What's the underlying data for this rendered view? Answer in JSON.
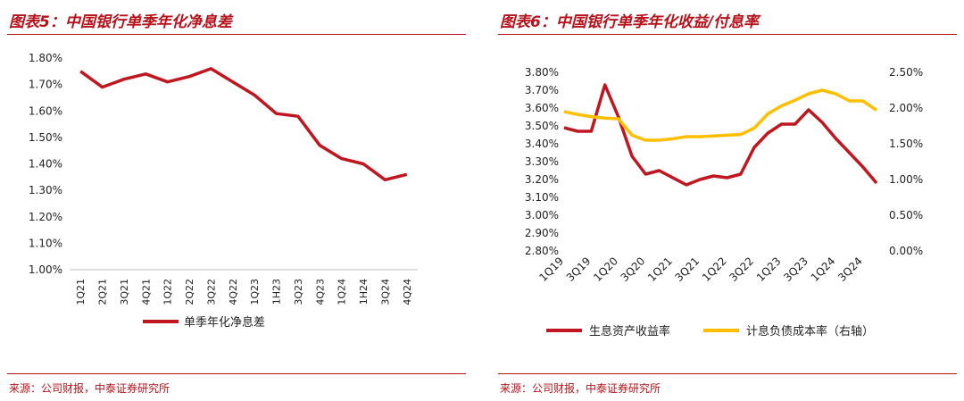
{
  "panels": [
    {
      "title": "图表5：中国银行单季年化净息差",
      "source": "来源：公司财报，中泰证券研究所"
    },
    {
      "title": "图表6：中国银行单季年化收益/付息率",
      "source": "来源：公司财报，中泰证券研究所"
    }
  ],
  "colors": {
    "accent": "#b7121b",
    "series_red": "#c0161f",
    "series_yellow": "#ffbf00"
  },
  "chart_data": [
    {
      "type": "line",
      "title": "",
      "categories": [
        "1Q21",
        "2Q21",
        "3Q21",
        "4Q21",
        "1Q22",
        "2Q22",
        "3Q22",
        "4Q22",
        "1Q23",
        "1H23",
        "3Q23",
        "4Q23",
        "1Q24",
        "1H24",
        "3Q24",
        "4Q24"
      ],
      "yticks": [
        "1.80%",
        "1.70%",
        "1.60%",
        "1.50%",
        "1.40%",
        "1.30%",
        "1.20%",
        "1.10%",
        "1.00%"
      ],
      "ylim": [
        1.0,
        1.8
      ],
      "series": [
        {
          "name": "单季年化净息差",
          "color": "#c0161f",
          "values": [
            1.75,
            1.69,
            1.72,
            1.74,
            1.71,
            1.73,
            1.76,
            1.71,
            1.66,
            1.59,
            1.58,
            1.47,
            1.42,
            1.4,
            1.34,
            1.36
          ]
        }
      ],
      "legend": "bottom",
      "grid": false
    },
    {
      "type": "line",
      "title": "",
      "categories": [
        "1Q19",
        "2Q19",
        "3Q19",
        "4Q19",
        "1Q20",
        "2Q20",
        "3Q20",
        "4Q20",
        "1Q21",
        "2Q21",
        "3Q21",
        "4Q21",
        "1Q22",
        "2Q22",
        "3Q22",
        "4Q22",
        "1Q23",
        "2Q23",
        "3Q23",
        "4Q23",
        "1Q24",
        "2Q24",
        "3Q24",
        "4Q24"
      ],
      "x_tick_labels": [
        "1Q19",
        "3Q19",
        "1Q20",
        "3Q20",
        "1Q21",
        "3Q21",
        "1Q22",
        "3Q22",
        "1Q23",
        "3Q23",
        "1Q24",
        "3Q24"
      ],
      "y_left_ticks": [
        "3.80%",
        "3.70%",
        "3.60%",
        "3.50%",
        "3.40%",
        "3.30%",
        "3.20%",
        "3.10%",
        "3.00%",
        "2.90%",
        "2.80%"
      ],
      "y_right_ticks": [
        "2.50%",
        "2.00%",
        "1.50%",
        "1.00%",
        "0.50%",
        "0.00%"
      ],
      "ylim_left": [
        2.8,
        3.8
      ],
      "ylim_right": [
        0.0,
        2.5
      ],
      "series": [
        {
          "name": "生息资产收益率",
          "axis": "left",
          "color": "#c0161f",
          "values": [
            3.49,
            3.47,
            3.47,
            3.73,
            3.55,
            3.33,
            3.23,
            3.25,
            3.21,
            3.17,
            3.2,
            3.22,
            3.21,
            3.23,
            3.38,
            3.46,
            3.51,
            3.51,
            3.59,
            3.52,
            3.43,
            3.35,
            3.27,
            3.18
          ]
        },
        {
          "name": "计息负债成本率（右轴）",
          "axis": "right",
          "color": "#ffbf00",
          "values": [
            1.95,
            1.91,
            1.88,
            1.86,
            1.85,
            1.62,
            1.55,
            1.55,
            1.57,
            1.6,
            1.6,
            1.61,
            1.62,
            1.63,
            1.72,
            1.92,
            2.03,
            2.11,
            2.2,
            2.25,
            2.2,
            2.1,
            2.1,
            1.97
          ]
        }
      ],
      "legend": "bottom",
      "grid": false
    }
  ]
}
